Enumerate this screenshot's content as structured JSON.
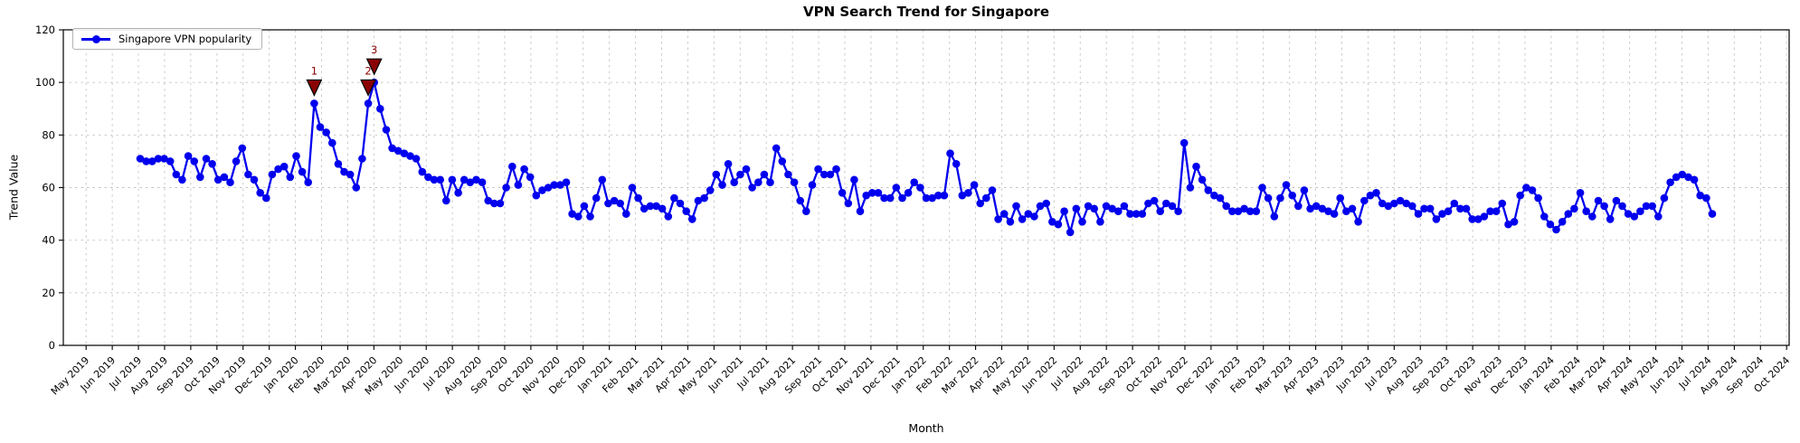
{
  "figure": {
    "title": "VPN Search Trend for Singapore",
    "x_axis_label": "Month",
    "y_axis_label": "Trend Value"
  },
  "legend": {
    "label": "Singapore VPN popularity"
  },
  "colors": {
    "line": "#0000ee",
    "marker": "#0000ee",
    "annotation": "#8b0000",
    "annotation_edge": "#000000",
    "grid": "#c4c4c4",
    "spine": "#000000",
    "text": "#000000",
    "legend_border": "#b3b3b3"
  },
  "chart_data": {
    "type": "line",
    "title": "VPN Search Trend for Singapore",
    "xlabel": "Month",
    "ylabel": "Trend Value",
    "ylim": [
      0,
      120
    ],
    "grid": true,
    "grid_style": "dashed",
    "legend_position": "upper-left",
    "y_ticks": [
      0,
      20,
      40,
      60,
      80,
      100,
      120
    ],
    "x_tick_labels": [
      "May 2019",
      "Jun 2019",
      "Jul 2019",
      "Aug 2019",
      "Sep 2019",
      "Oct 2019",
      "Nov 2019",
      "Dec 2019",
      "Jan 2020",
      "Feb 2020",
      "Mar 2020",
      "Apr 2020",
      "May 2020",
      "Jun 2020",
      "Jul 2020",
      "Aug 2020",
      "Sep 2020",
      "Oct 2020",
      "Nov 2020",
      "Dec 2020",
      "Jan 2021",
      "Feb 2021",
      "Mar 2021",
      "Apr 2021",
      "May 2021",
      "Jun 2021",
      "Jul 2021",
      "Aug 2021",
      "Sep 2021",
      "Oct 2021",
      "Nov 2021",
      "Dec 2021",
      "Jan 2022",
      "Feb 2022",
      "Mar 2022",
      "Apr 2022",
      "May 2022",
      "Jun 2022",
      "Jul 2022",
      "Aug 2022",
      "Sep 2022",
      "Oct 2022",
      "Nov 2022",
      "Dec 2022",
      "Jan 2023",
      "Feb 2023",
      "Mar 2023",
      "Apr 2023",
      "May 2023",
      "Jun 2023",
      "Jul 2023",
      "Aug 2023",
      "Sep 2023",
      "Oct 2023",
      "Nov 2023",
      "Dec 2023",
      "Jan 2024",
      "Feb 2024",
      "Mar 2024",
      "Apr 2024",
      "May 2024",
      "Jun 2024",
      "Jul 2024",
      "Aug 2024",
      "Sep 2024",
      "Oct 2024"
    ],
    "series": [
      {
        "name": "Singapore VPN popularity",
        "color": "#0000ee",
        "marker": "circle",
        "start_date": "2019-07-07",
        "interval_days": 7,
        "values": [
          71,
          70,
          70,
          71,
          71,
          70,
          65,
          63,
          72,
          70,
          64,
          71,
          69,
          63,
          64,
          62,
          70,
          75,
          65,
          63,
          58,
          56,
          65,
          67,
          68,
          64,
          72,
          66,
          62,
          92,
          83,
          81,
          77,
          69,
          66,
          65,
          60,
          71,
          92,
          100,
          90,
          82,
          75,
          74,
          73,
          72,
          71,
          66,
          64,
          63,
          63,
          55,
          63,
          58,
          63,
          62,
          63,
          62,
          55,
          54,
          54,
          60,
          68,
          61,
          67,
          64,
          57,
          59,
          60,
          61,
          61,
          62,
          50,
          49,
          53,
          49,
          56,
          63,
          54,
          55,
          54,
          50,
          60,
          56,
          52,
          53,
          53,
          52,
          49,
          56,
          54,
          51,
          48,
          55,
          56,
          59,
          65,
          61,
          69,
          62,
          65,
          67,
          60,
          62,
          65,
          62,
          75,
          70,
          65,
          62,
          55,
          51,
          61,
          67,
          65,
          65,
          67,
          58,
          54,
          63,
          51,
          57,
          58,
          58,
          56,
          56,
          60,
          56,
          58,
          62,
          60,
          56,
          56,
          57,
          57,
          73,
          69,
          57,
          58,
          61,
          54,
          56,
          59,
          48,
          50,
          47,
          53,
          48,
          50,
          49,
          53,
          54,
          47,
          46,
          51,
          43,
          52,
          47,
          53,
          52,
          47,
          53,
          52,
          51,
          53,
          50,
          50,
          50,
          54,
          55,
          51,
          54,
          53,
          51,
          77,
          60,
          68,
          63,
          59,
          57,
          56,
          53,
          51,
          51,
          52,
          51,
          51,
          60,
          56,
          49,
          56,
          61,
          57,
          53,
          59,
          52,
          53,
          52,
          51,
          50,
          56,
          51,
          52,
          47,
          55,
          57,
          58,
          54,
          53,
          54,
          55,
          54,
          53,
          50,
          52,
          52,
          48,
          50,
          51,
          54,
          52,
          52,
          48,
          48,
          49,
          51,
          51,
          54,
          46,
          47,
          57,
          60,
          59,
          56,
          49,
          46,
          44,
          47,
          50,
          52,
          58,
          51,
          49,
          55,
          53,
          48,
          55,
          53,
          50,
          49,
          51,
          53,
          53,
          49,
          56,
          62,
          64,
          65,
          64,
          63,
          57,
          56,
          50
        ]
      }
    ],
    "annotations": [
      {
        "label": "1",
        "week_index": 29,
        "date": "2020-01-26",
        "value": 92,
        "marker": "triangle-down",
        "color": "#8b0000"
      },
      {
        "label": "2",
        "week_index": 38,
        "date": "2020-03-29",
        "value": 92,
        "marker": "triangle-down",
        "color": "#8b0000"
      },
      {
        "label": "3",
        "week_index": 39,
        "date": "2020-04-05",
        "value": 100,
        "marker": "triangle-down",
        "color": "#8b0000"
      }
    ]
  }
}
